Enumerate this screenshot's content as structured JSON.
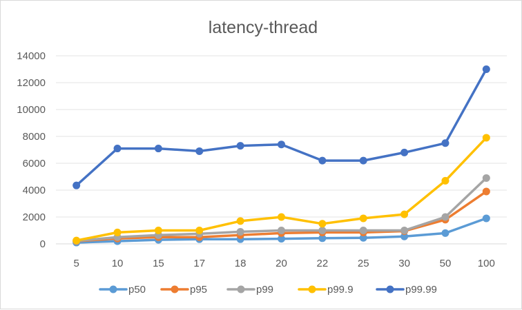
{
  "chart_data": {
    "type": "line",
    "title": "latency-thread",
    "xlabel": "",
    "ylabel": "",
    "categories": [
      "5",
      "10",
      "15",
      "17",
      "18",
      "20",
      "22",
      "25",
      "30",
      "50",
      "100"
    ],
    "y_ticks": [
      "0",
      "2000",
      "4000",
      "6000",
      "8000",
      "10000",
      "12000",
      "14000"
    ],
    "ylim": [
      0,
      14000
    ],
    "grid": "horizontal",
    "legend_position": "bottom",
    "series": [
      {
        "name": "p50",
        "color": "#5B9BD5",
        "values": [
          100,
          200,
          300,
          350,
          350,
          380,
          420,
          450,
          550,
          800,
          1900
        ]
      },
      {
        "name": "p95",
        "color": "#ED7D31",
        "values": [
          200,
          400,
          500,
          500,
          650,
          800,
          850,
          850,
          950,
          1800,
          3900
        ]
      },
      {
        "name": "p99",
        "color": "#A5A5A5",
        "values": [
          220,
          500,
          650,
          750,
          900,
          1000,
          1000,
          1000,
          1000,
          2000,
          4900
        ]
      },
      {
        "name": "p99.9",
        "color": "#FFC000",
        "values": [
          250,
          850,
          1000,
          1000,
          1700,
          2000,
          1500,
          1900,
          2200,
          4700,
          7900
        ]
      },
      {
        "name": "p99.99",
        "color": "#4472C4",
        "values": [
          4350,
          7100,
          7100,
          6900,
          7300,
          7400,
          6200,
          6200,
          6800,
          7500,
          13000
        ]
      }
    ]
  }
}
